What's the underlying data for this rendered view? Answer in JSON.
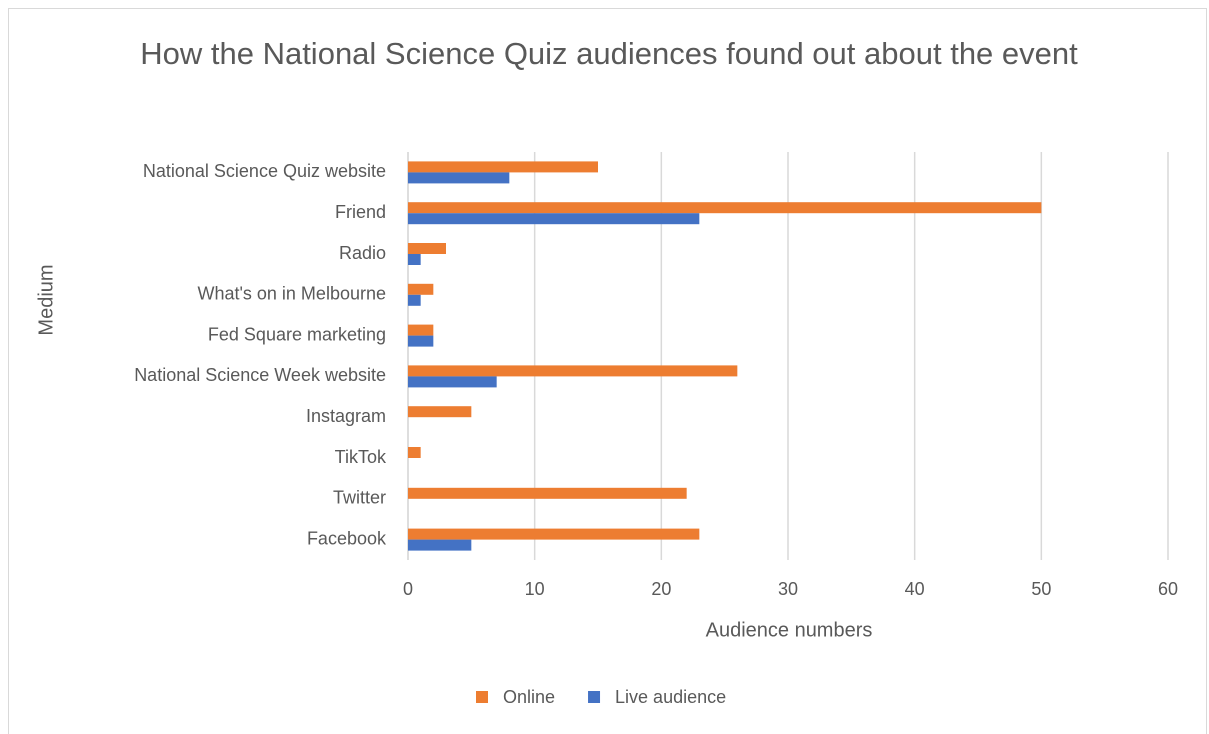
{
  "chart_data": {
    "type": "bar",
    "orientation": "horizontal",
    "title": "How the National Science Quiz audiences found out about the event",
    "x_label": "Audience numbers",
    "y_label": "Medium",
    "categories": [
      "National Science Quiz website",
      "Friend",
      "Radio",
      "What's on in Melbourne",
      "Fed Square marketing",
      "National Science Week website",
      "Instagram",
      "TikTok",
      "Twitter",
      "Facebook"
    ],
    "series": [
      {
        "name": "Online",
        "color": "#ed7d31",
        "values": [
          15,
          50,
          3,
          2,
          2,
          26,
          5,
          1,
          22,
          23
        ]
      },
      {
        "name": "Live audience",
        "color": "#4472c4",
        "values": [
          8,
          23,
          1,
          1,
          2,
          7,
          0,
          0,
          0,
          5
        ]
      }
    ],
    "xlim": [
      0,
      60
    ],
    "xticks": [
      0,
      10,
      20,
      30,
      40,
      50,
      60
    ],
    "grid": true,
    "legend": "bottom"
  }
}
